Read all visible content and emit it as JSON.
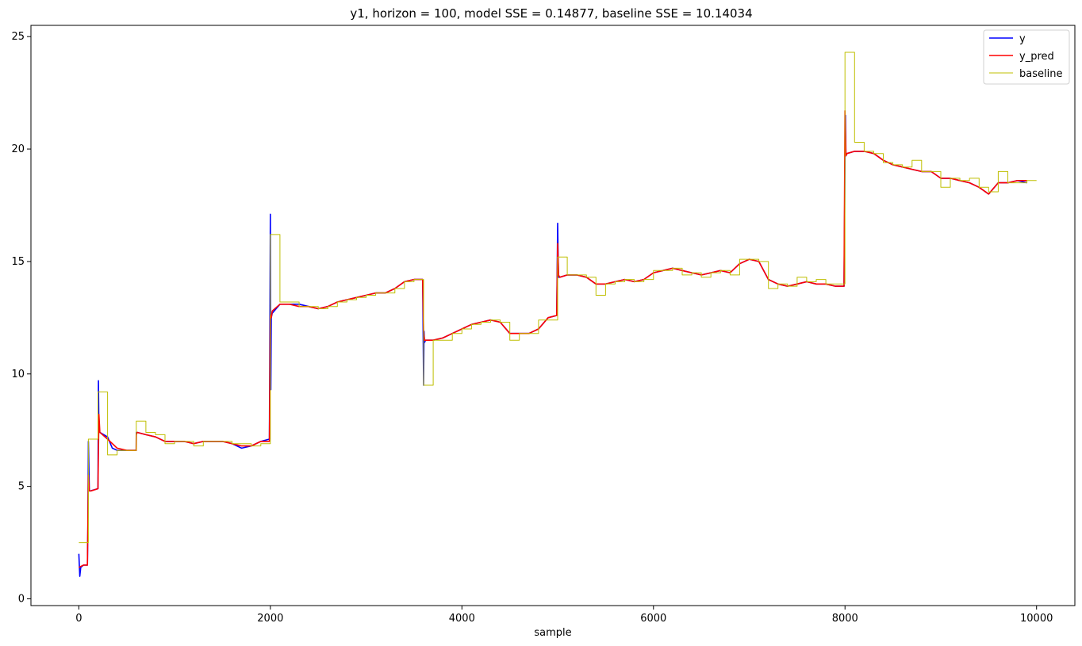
{
  "chart_data": {
    "type": "line",
    "title": "y1, horizon = 100, model SSE = 0.14877, baseline SSE = 10.14034",
    "xlabel": "sample",
    "ylabel": "",
    "xlim": [
      -500,
      10400
    ],
    "ylim": [
      -0.3,
      25.5
    ],
    "xticks": [
      0,
      2000,
      4000,
      6000,
      8000,
      10000
    ],
    "yticks": [
      0,
      5,
      10,
      15,
      20,
      25
    ],
    "grid": false,
    "legend_position": "top-right",
    "series": [
      {
        "name": "y",
        "color": "#0000ff",
        "x": [
          0,
          10,
          20,
          50,
          90,
          95,
          100,
          110,
          120,
          200,
          205,
          210,
          220,
          300,
          350,
          400,
          500,
          599,
          600,
          610,
          700,
          800,
          900,
          1000,
          1100,
          1200,
          1300,
          1400,
          1500,
          1600,
          1700,
          1800,
          1900,
          1990,
          2000,
          2005,
          2010,
          2020,
          2100,
          2200,
          2300,
          2400,
          2500,
          2600,
          2700,
          2800,
          2900,
          3000,
          3100,
          3200,
          3300,
          3400,
          3500,
          3590,
          3600,
          3605,
          3610,
          3620,
          3700,
          3800,
          3900,
          4000,
          4100,
          4200,
          4300,
          4400,
          4500,
          4600,
          4700,
          4800,
          4900,
          4990,
          5000,
          5005,
          5010,
          5020,
          5100,
          5200,
          5300,
          5400,
          5500,
          5600,
          5700,
          5800,
          5900,
          6000,
          6100,
          6200,
          6300,
          6400,
          6500,
          6600,
          6700,
          6800,
          6900,
          7000,
          7100,
          7200,
          7300,
          7400,
          7500,
          7600,
          7700,
          7800,
          7900,
          7990,
          8000,
          8005,
          8010,
          8020,
          8100,
          8200,
          8300,
          8400,
          8500,
          8600,
          8700,
          8800,
          8900,
          9000,
          9100,
          9200,
          9300,
          9400,
          9500,
          9600,
          9650,
          9700,
          9800,
          9900
        ],
        "y": [
          2.0,
          1.0,
          1.4,
          1.5,
          1.5,
          3.3,
          7.0,
          4.8,
          4.8,
          4.9,
          9.7,
          7.5,
          7.4,
          7.2,
          6.7,
          6.6,
          6.6,
          6.6,
          7.4,
          7.4,
          7.3,
          7.2,
          7.0,
          7.0,
          7.0,
          6.9,
          7.0,
          7.0,
          7.0,
          6.9,
          6.7,
          6.8,
          7.0,
          7.1,
          17.1,
          9.3,
          12.5,
          12.7,
          13.1,
          13.1,
          13.1,
          13.0,
          12.9,
          13.0,
          13.2,
          13.3,
          13.4,
          13.5,
          13.6,
          13.6,
          13.8,
          14.1,
          14.2,
          14.2,
          9.5,
          11.9,
          11.4,
          11.5,
          11.5,
          11.6,
          11.8,
          12.0,
          12.2,
          12.3,
          12.4,
          12.3,
          11.8,
          11.8,
          11.8,
          12.0,
          12.5,
          12.6,
          16.7,
          15.3,
          14.3,
          14.3,
          14.4,
          14.4,
          14.3,
          14.0,
          14.0,
          14.1,
          14.2,
          14.1,
          14.2,
          14.5,
          14.6,
          14.7,
          14.6,
          14.5,
          14.4,
          14.5,
          14.6,
          14.5,
          14.9,
          15.1,
          15.0,
          14.2,
          14.0,
          13.9,
          14.0,
          14.1,
          14.0,
          14.0,
          13.9,
          13.9,
          19.3,
          21.5,
          19.7,
          19.8,
          19.9,
          19.9,
          19.8,
          19.5,
          19.3,
          19.2,
          19.1,
          19.0,
          19.0,
          18.7,
          18.7,
          18.6,
          18.5,
          18.3,
          18.0,
          18.5,
          18.5,
          18.5,
          18.6,
          18.5
        ]
      },
      {
        "name": "y_pred",
        "color": "#ff0000",
        "x": [
          0,
          50,
          90,
          100,
          110,
          130,
          200,
          210,
          220,
          300,
          400,
          500,
          599,
          600,
          610,
          700,
          800,
          900,
          1000,
          1100,
          1200,
          1300,
          1400,
          1500,
          1600,
          1700,
          1800,
          1900,
          1990,
          2000,
          2010,
          2020,
          2100,
          2200,
          2300,
          2400,
          2500,
          2600,
          2700,
          2800,
          2900,
          3000,
          3100,
          3200,
          3300,
          3400,
          3500,
          3590,
          3600,
          3610,
          3620,
          3700,
          3800,
          3900,
          4000,
          4100,
          4200,
          4300,
          4400,
          4500,
          4600,
          4700,
          4800,
          4900,
          4990,
          5000,
          5010,
          5020,
          5100,
          5200,
          5300,
          5400,
          5500,
          5600,
          5700,
          5800,
          5900,
          6000,
          6100,
          6200,
          6300,
          6400,
          6500,
          6600,
          6700,
          6800,
          6900,
          7000,
          7100,
          7200,
          7300,
          7400,
          7500,
          7600,
          7700,
          7800,
          7900,
          7990,
          8000,
          8010,
          8020,
          8100,
          8200,
          8300,
          8400,
          8500,
          8600,
          8700,
          8800,
          8900,
          9000,
          9100,
          9200,
          9300,
          9400,
          9500,
          9600,
          9650,
          9700,
          9800,
          9900
        ],
        "y": [
          1.4,
          1.5,
          1.5,
          5.5,
          4.8,
          4.8,
          4.9,
          8.2,
          7.4,
          7.1,
          6.7,
          6.6,
          6.6,
          7.3,
          7.4,
          7.3,
          7.2,
          7.0,
          7.0,
          7.0,
          6.9,
          7.0,
          7.0,
          7.0,
          6.9,
          6.8,
          6.8,
          7.0,
          7.0,
          12.6,
          12.5,
          12.8,
          13.1,
          13.1,
          13.0,
          13.0,
          12.9,
          13.0,
          13.2,
          13.3,
          13.4,
          13.5,
          13.6,
          13.6,
          13.8,
          14.1,
          14.2,
          14.2,
          11.9,
          11.5,
          11.5,
          11.5,
          11.6,
          11.8,
          12.0,
          12.2,
          12.3,
          12.4,
          12.3,
          11.8,
          11.8,
          11.8,
          12.0,
          12.5,
          12.6,
          15.8,
          14.4,
          14.3,
          14.4,
          14.4,
          14.3,
          14.0,
          14.0,
          14.1,
          14.2,
          14.1,
          14.2,
          14.5,
          14.6,
          14.7,
          14.6,
          14.5,
          14.4,
          14.5,
          14.6,
          14.5,
          14.9,
          15.1,
          15.0,
          14.2,
          14.0,
          13.9,
          14.0,
          14.1,
          14.0,
          14.0,
          13.9,
          13.9,
          21.7,
          19.7,
          19.8,
          19.9,
          19.9,
          19.8,
          19.5,
          19.3,
          19.2,
          19.1,
          19.0,
          19.0,
          18.7,
          18.7,
          18.6,
          18.5,
          18.3,
          18.0,
          18.5,
          18.5,
          18.5,
          18.6,
          18.6
        ]
      },
      {
        "name": "baseline",
        "color": "#bfbf00",
        "x": [
          0,
          100,
          200,
          300,
          400,
          500,
          600,
          700,
          800,
          900,
          1000,
          1100,
          1200,
          1300,
          1400,
          1500,
          1600,
          1700,
          1800,
          1900,
          2000,
          2100,
          2200,
          2300,
          2400,
          2500,
          2600,
          2700,
          2800,
          2900,
          3000,
          3100,
          3200,
          3300,
          3400,
          3500,
          3600,
          3700,
          3800,
          3900,
          4000,
          4100,
          4200,
          4300,
          4400,
          4500,
          4600,
          4700,
          4800,
          4900,
          5000,
          5100,
          5200,
          5300,
          5400,
          5500,
          5600,
          5700,
          5800,
          5900,
          6000,
          6100,
          6200,
          6300,
          6400,
          6500,
          6600,
          6700,
          6800,
          6900,
          7000,
          7100,
          7200,
          7300,
          7400,
          7500,
          7600,
          7700,
          7800,
          7900,
          8000,
          8100,
          8200,
          8300,
          8400,
          8500,
          8600,
          8700,
          8800,
          8900,
          9000,
          9100,
          9200,
          9300,
          9400,
          9500,
          9600,
          9700,
          9800,
          9900
        ],
        "y": [
          2.5,
          7.1,
          9.2,
          6.4,
          6.6,
          6.6,
          7.9,
          7.4,
          7.3,
          6.9,
          7.0,
          7.0,
          6.8,
          7.0,
          7.0,
          7.0,
          6.9,
          6.9,
          6.8,
          6.9,
          16.2,
          13.2,
          13.2,
          13.0,
          13.0,
          12.9,
          13.0,
          13.2,
          13.3,
          13.4,
          13.5,
          13.6,
          13.6,
          13.8,
          14.1,
          14.2,
          9.5,
          11.5,
          11.5,
          11.8,
          12.0,
          12.2,
          12.3,
          12.4,
          12.3,
          11.5,
          11.8,
          11.8,
          12.4,
          12.4,
          15.2,
          14.4,
          14.4,
          14.3,
          13.5,
          14.0,
          14.1,
          14.2,
          14.1,
          14.2,
          14.6,
          14.6,
          14.7,
          14.4,
          14.5,
          14.3,
          14.5,
          14.6,
          14.4,
          15.1,
          15.1,
          15.0,
          13.8,
          14.0,
          13.9,
          14.3,
          14.1,
          14.2,
          14.0,
          14.0,
          24.3,
          20.3,
          19.9,
          19.8,
          19.4,
          19.3,
          19.2,
          19.5,
          19.0,
          19.0,
          18.3,
          18.7,
          18.6,
          18.7,
          18.3,
          18.1,
          19.0,
          18.5,
          18.5,
          18.6
        ]
      }
    ]
  }
}
